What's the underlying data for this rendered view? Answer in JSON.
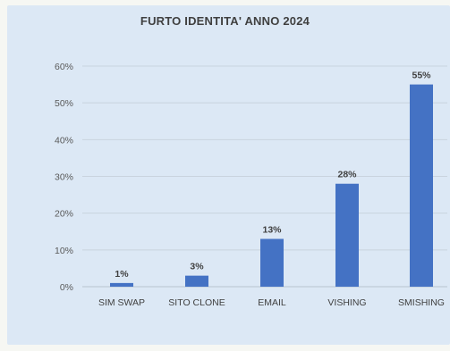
{
  "chart_data": {
    "type": "bar",
    "title": "FURTO IDENTITA' ANNO 2024",
    "categories": [
      "SIM SWAP",
      "SITO CLONE",
      "EMAIL",
      "VISHING",
      "SMISHING"
    ],
    "values": [
      1,
      3,
      13,
      28,
      55
    ],
    "data_labels": [
      "1%",
      "3%",
      "13%",
      "28%",
      "55%"
    ],
    "ylim": [
      0,
      60
    ],
    "yticks": [
      0,
      10,
      20,
      30,
      40,
      50,
      60
    ],
    "ytick_labels": [
      "0%",
      "10%",
      "20%",
      "30%",
      "40%",
      "50%",
      "60%"
    ],
    "xlabel": "",
    "ylabel": "",
    "grid": true,
    "legend": "none",
    "colors": {
      "bar": "#4472c4",
      "grid": "#c9d3de",
      "panel": "#dce8f5"
    }
  }
}
